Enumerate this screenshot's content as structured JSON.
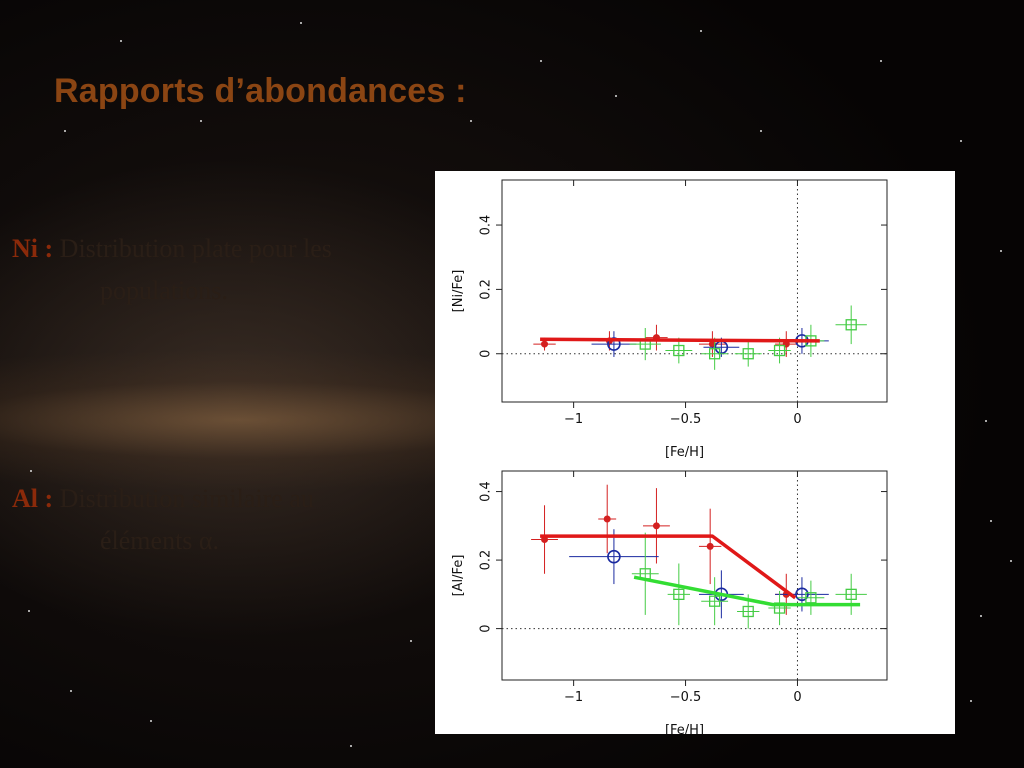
{
  "slide": {
    "title": "Rapports d’abondances :",
    "items": [
      {
        "key": "Ni :",
        "line1": "Distribution plate pour les",
        "line2": "populations."
      },
      {
        "key": "Al :",
        "line1": "Distribution similaire au",
        "line2": "éléments α."
      }
    ]
  },
  "chart_data": [
    {
      "type": "scatter",
      "ylabel": "[Ni/Fe]",
      "xlabel": "[Fe/H]",
      "xlim": [
        -1.32,
        0.4
      ],
      "ylim": [
        -0.15,
        0.54
      ],
      "xticks": [
        -1,
        -0.5,
        0
      ],
      "yticks": [
        0,
        0.2,
        0.4
      ],
      "xticklabels": [
        "−1",
        "−0.5",
        "0"
      ],
      "yticklabels": [
        "0",
        "0.2",
        "0.4"
      ],
      "reference_lines": {
        "y": 0,
        "x": 0
      },
      "series": [
        {
          "marker": "filled-dot",
          "color": "#d42020",
          "points": [
            {
              "x": -1.13,
              "y": 0.03,
              "xerr": 0.05,
              "yerr": 0.02
            },
            {
              "x": -0.84,
              "y": 0.04,
              "xerr": 0.05,
              "yerr": 0.03
            },
            {
              "x": -0.63,
              "y": 0.05,
              "xerr": 0.05,
              "yerr": 0.04
            },
            {
              "x": -0.38,
              "y": 0.03,
              "xerr": 0.06,
              "yerr": 0.04
            },
            {
              "x": -0.05,
              "y": 0.03,
              "xerr": 0.05,
              "yerr": 0.04
            }
          ]
        },
        {
          "marker": "open-circle",
          "color": "#1a2aa0",
          "points": [
            {
              "x": -0.82,
              "y": 0.03,
              "xerr": 0.1,
              "yerr": 0.04
            },
            {
              "x": -0.34,
              "y": 0.02,
              "xerr": 0.08,
              "yerr": 0.03
            },
            {
              "x": 0.02,
              "y": 0.04,
              "xerr": 0.12,
              "yerr": 0.04
            }
          ]
        },
        {
          "marker": "open-square",
          "color": "#44cc44",
          "points": [
            {
              "x": -0.68,
              "y": 0.03,
              "xerr": 0.07,
              "yerr": 0.05
            },
            {
              "x": -0.53,
              "y": 0.01,
              "xerr": 0.06,
              "yerr": 0.04
            },
            {
              "x": -0.37,
              "y": 0.0,
              "xerr": 0.06,
              "yerr": 0.05
            },
            {
              "x": -0.22,
              "y": 0.0,
              "xerr": 0.06,
              "yerr": 0.04
            },
            {
              "x": -0.08,
              "y": 0.01,
              "xerr": 0.05,
              "yerr": 0.04
            },
            {
              "x": 0.06,
              "y": 0.04,
              "xerr": 0.06,
              "yerr": 0.05
            },
            {
              "x": 0.24,
              "y": 0.09,
              "xerr": 0.07,
              "yerr": 0.06
            }
          ]
        }
      ],
      "lines": [
        {
          "color": "#e01818",
          "points": [
            [
              -1.15,
              0.045
            ],
            [
              0.1,
              0.04
            ]
          ]
        }
      ]
    },
    {
      "type": "scatter",
      "ylabel": "[Al/Fe]",
      "xlabel": "[Fe/H]",
      "xlim": [
        -1.32,
        0.4
      ],
      "ylim": [
        -0.15,
        0.46
      ],
      "xticks": [
        -1,
        -0.5,
        0
      ],
      "yticks": [
        0,
        0.2,
        0.4
      ],
      "xticklabels": [
        "−1",
        "−0.5",
        "0"
      ],
      "yticklabels": [
        "0",
        "0.2",
        "0.4"
      ],
      "reference_lines": {
        "y": 0,
        "x": 0
      },
      "series": [
        {
          "marker": "filled-dot",
          "color": "#d42020",
          "points": [
            {
              "x": -1.13,
              "y": 0.26,
              "xerr": 0.06,
              "yerr": 0.1
            },
            {
              "x": -0.85,
              "y": 0.32,
              "xerr": 0.04,
              "yerr": 0.1
            },
            {
              "x": -0.63,
              "y": 0.3,
              "xerr": 0.06,
              "yerr": 0.11
            },
            {
              "x": -0.39,
              "y": 0.24,
              "xerr": 0.05,
              "yerr": 0.11
            },
            {
              "x": -0.05,
              "y": 0.1,
              "xerr": 0.05,
              "yerr": 0.06
            }
          ]
        },
        {
          "marker": "open-circle",
          "color": "#1a2aa0",
          "points": [
            {
              "x": -0.82,
              "y": 0.21,
              "xerr": 0.2,
              "yerr": 0.08
            },
            {
              "x": -0.34,
              "y": 0.1,
              "xerr": 0.1,
              "yerr": 0.07
            },
            {
              "x": 0.02,
              "y": 0.1,
              "xerr": 0.12,
              "yerr": 0.05
            }
          ]
        },
        {
          "marker": "open-square",
          "color": "#44cc44",
          "points": [
            {
              "x": -0.68,
              "y": 0.16,
              "xerr": 0.06,
              "yerr": 0.12
            },
            {
              "x": -0.53,
              "y": 0.1,
              "xerr": 0.05,
              "yerr": 0.09
            },
            {
              "x": -0.37,
              "y": 0.08,
              "xerr": 0.06,
              "yerr": 0.07
            },
            {
              "x": -0.22,
              "y": 0.05,
              "xerr": 0.05,
              "yerr": 0.05
            },
            {
              "x": -0.08,
              "y": 0.06,
              "xerr": 0.05,
              "yerr": 0.05
            },
            {
              "x": 0.06,
              "y": 0.09,
              "xerr": 0.06,
              "yerr": 0.05
            },
            {
              "x": 0.24,
              "y": 0.1,
              "xerr": 0.07,
              "yerr": 0.06
            }
          ]
        }
      ],
      "lines": [
        {
          "color": "#e01818",
          "points": [
            [
              -1.15,
              0.27
            ],
            [
              -0.38,
              0.27
            ],
            [
              -0.01,
              0.09
            ]
          ]
        },
        {
          "color": "#33dd33",
          "points": [
            [
              -0.73,
              0.15
            ],
            [
              -0.11,
              0.07
            ],
            [
              0.28,
              0.07
            ]
          ]
        }
      ]
    }
  ]
}
